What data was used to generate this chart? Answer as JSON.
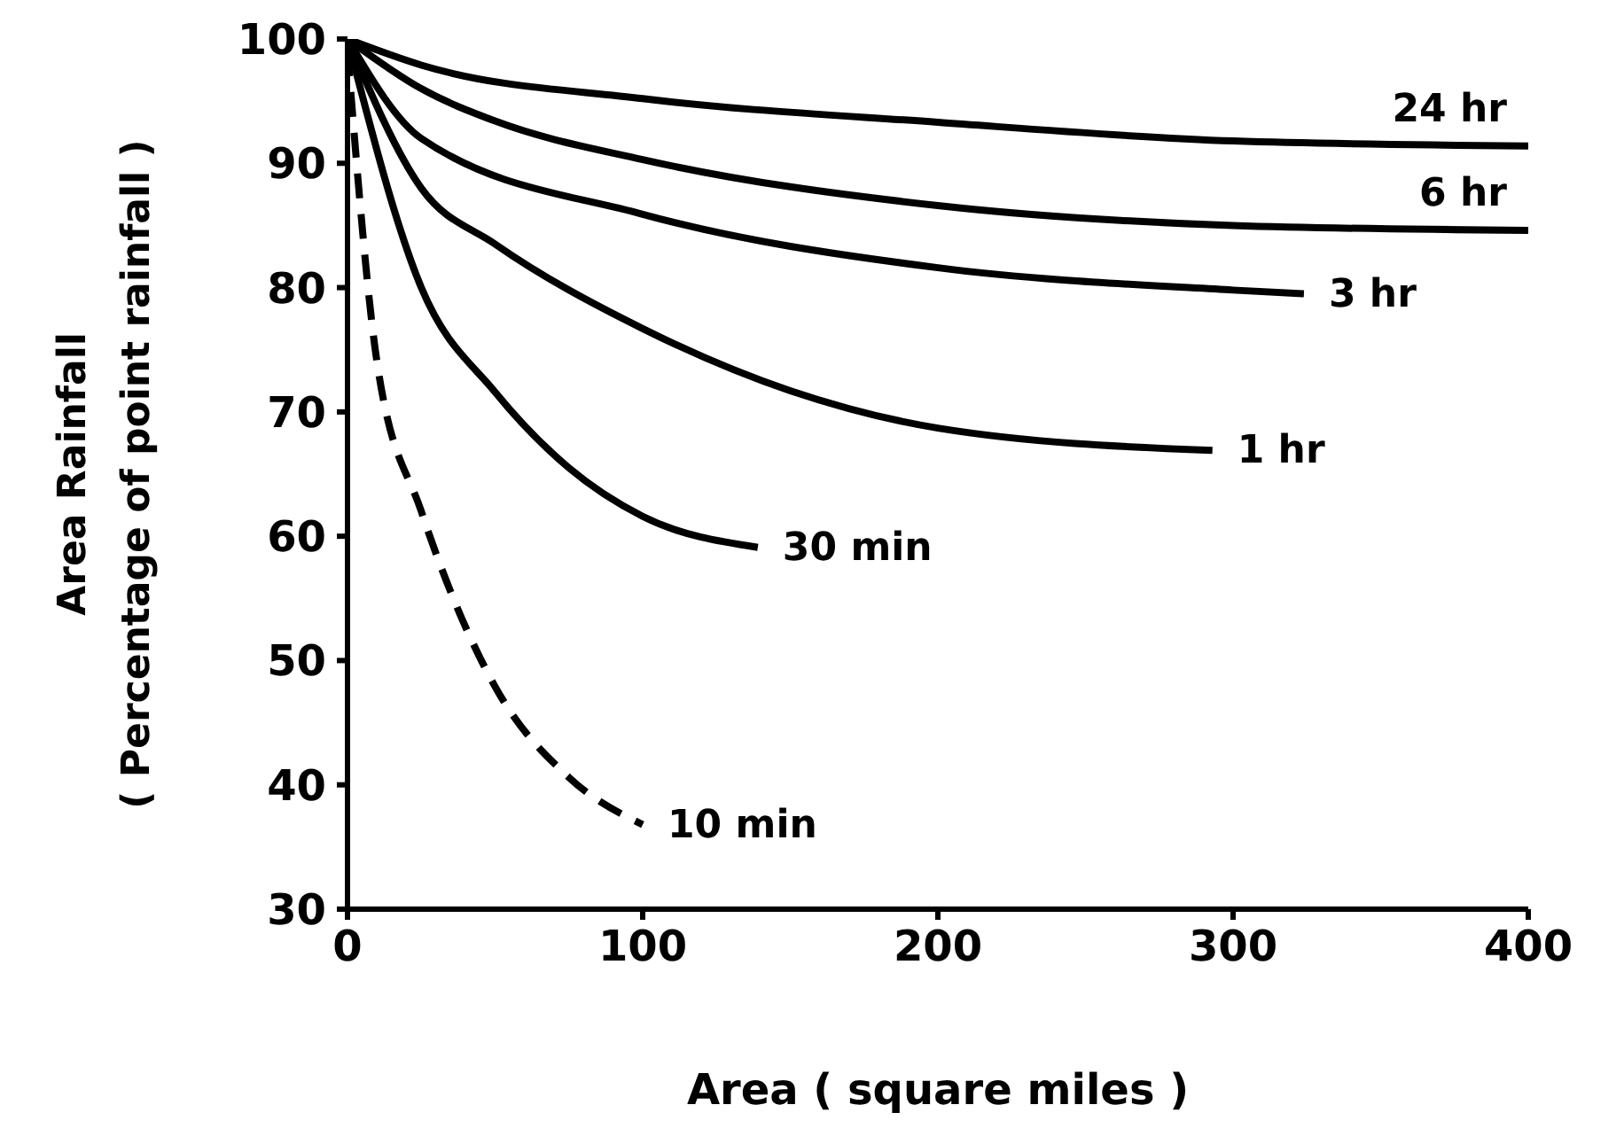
{
  "chart_data": {
    "type": "line",
    "xlabel": "Area ( square miles )",
    "ylabel": "Area Rainfall\n( Percentage of point rainfall )",
    "xlim": [
      0,
      400
    ],
    "xticks": [
      0,
      100,
      200,
      300,
      400
    ],
    "ylim": [
      30,
      100
    ],
    "yticks": [
      30,
      40,
      50,
      60,
      70,
      80,
      90,
      100
    ],
    "grid": false,
    "legend": false,
    "marker": "none",
    "series": [
      {
        "name": "24 hr",
        "color": "#000000",
        "line_style": "solid",
        "x": [
          0,
          25,
          100,
          200,
          300,
          400
        ],
        "values": [
          100,
          97.9,
          95.2,
          93.3,
          91.8,
          91.4
        ]
      },
      {
        "name": "6 hr",
        "color": "#000000",
        "line_style": "solid",
        "x": [
          0,
          25,
          50,
          100,
          200,
          300,
          400
        ],
        "values": [
          100,
          96,
          93.4,
          90.3,
          86.6,
          85,
          84.6
        ]
      },
      {
        "name": "3 hr",
        "color": "#000000",
        "line_style": "solid",
        "x": [
          0,
          25,
          100,
          200,
          300,
          324
        ],
        "values": [
          100,
          92,
          85.9,
          81.6,
          79.8,
          79.5
        ]
      },
      {
        "name": "1 hr",
        "color": "#000000",
        "line_style": "solid",
        "x": [
          0,
          25,
          50,
          100,
          150,
          200,
          293
        ],
        "values": [
          100,
          88,
          83.5,
          76.7,
          71.7,
          68.7,
          66.9
        ]
      },
      {
        "name": "30 min",
        "color": "#000000",
        "line_style": "solid",
        "x": [
          0,
          25,
          50,
          75,
          100,
          139
        ],
        "values": [
          100,
          80,
          71.6,
          65.5,
          61.6,
          59.1
        ]
      },
      {
        "name": "10 min",
        "color": "#000000",
        "line_style": "dashed",
        "x": [
          0,
          10,
          25,
          50,
          75,
          100
        ],
        "values": [
          99,
          74,
          62,
          47.9,
          40.6,
          36.8
        ]
      }
    ]
  }
}
